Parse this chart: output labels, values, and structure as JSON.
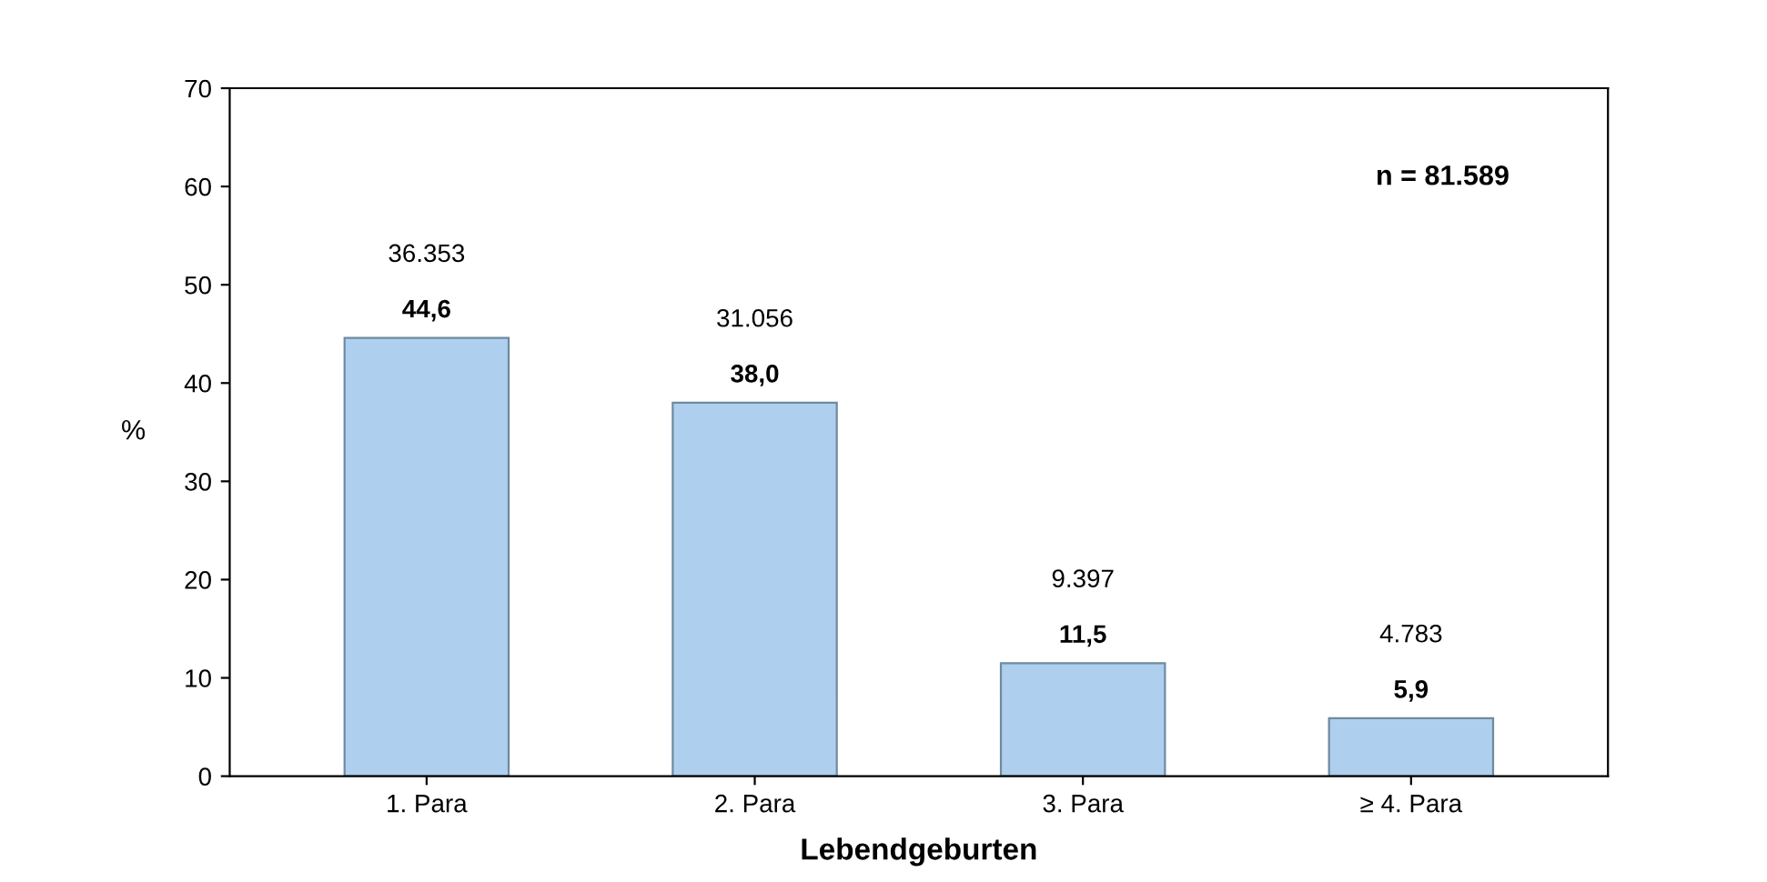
{
  "chart_data": {
    "type": "bar",
    "categories": [
      "1. Para",
      "2. Para",
      "3. Para",
      "≥ 4. Para"
    ],
    "values": [
      44.6,
      38.0,
      11.5,
      5.9
    ],
    "value_labels": [
      "44,6",
      "38,0",
      "11,5",
      "5,9"
    ],
    "color": "#aecfee",
    "xlabel": "Lebendgeburten",
    "ylabel": "%",
    "ylim": [
      0,
      70
    ],
    "yticks": [
      0,
      10,
      20,
      30,
      40,
      50,
      60,
      70
    ],
    "grid": false,
    "legend": false,
    "annotations": [
      {
        "text": "36.353",
        "x": "1. Para",
        "y": 44.6
      },
      {
        "text": "31.056",
        "x": "2. Para",
        "y": 38.0
      },
      {
        "text": "9.397",
        "x": "3. Para",
        "y": 11.5
      },
      {
        "text": "4.783",
        "x": "≥ 4. Para",
        "y": 5.9
      },
      "n = 81.589"
    ]
  }
}
